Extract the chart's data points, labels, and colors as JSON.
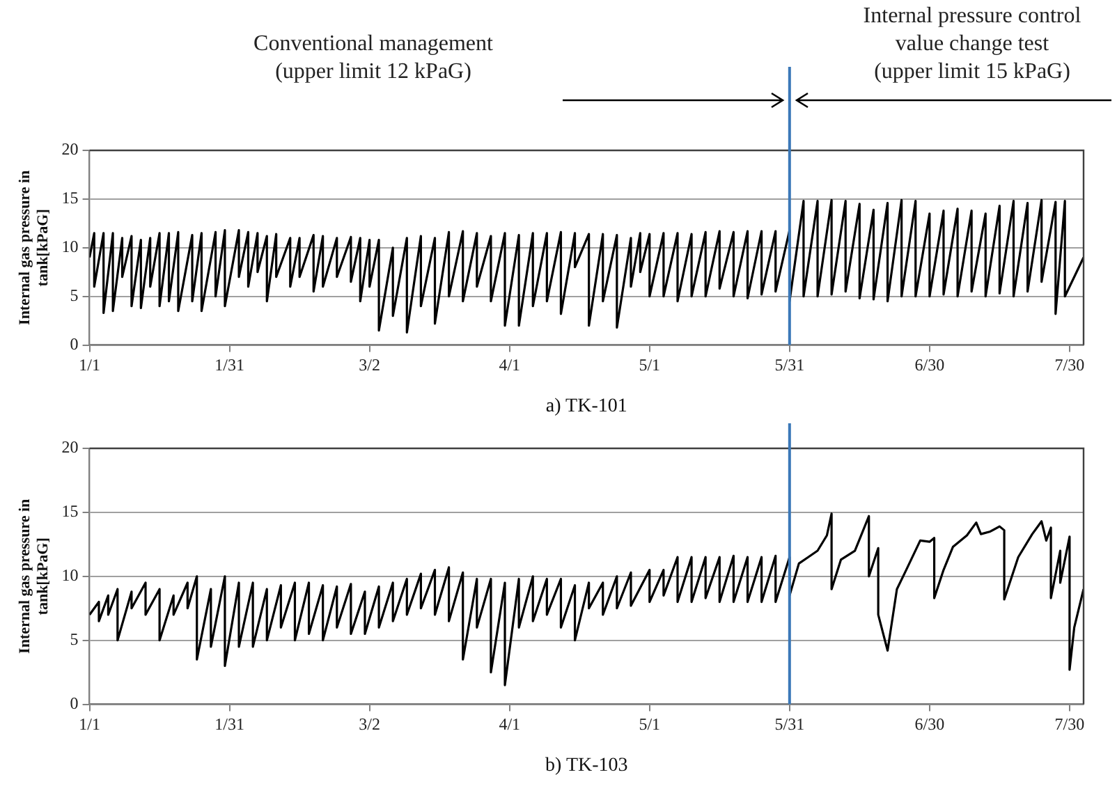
{
  "chart_data": [
    {
      "type": "line",
      "xlabel": "a) TK-101",
      "ylabel": "Internal gas pressure in\ntank[kPaG]",
      "xlim": [
        "--01-01",
        "--08-02"
      ],
      "xticks": [
        {
          "value": "--01-01",
          "label": "1/1"
        },
        {
          "value": "--01-31",
          "label": "1/31"
        },
        {
          "value": "--03-02",
          "label": "3/2"
        },
        {
          "value": "--04-01",
          "label": "4/1"
        },
        {
          "value": "--05-01",
          "label": "5/1"
        },
        {
          "value": "--05-31",
          "label": "5/31"
        },
        {
          "value": "--06-30",
          "label": "6/30"
        },
        {
          "value": "--07-30",
          "label": "7/30"
        }
      ],
      "ylim": [
        0,
        20
      ],
      "yticks": [
        0,
        5,
        10,
        15,
        20
      ],
      "grid": "y",
      "legend": false,
      "marker": "none",
      "line_style": "solid",
      "annotations": [
        "Conventional management\n(upper limit 12 kPaG)",
        "Internal pressure control\nvalue change test\n(upper limit 15 kPaG)"
      ],
      "ref_lines": [
        {
          "axis": "x",
          "value": "--05-31",
          "color": "#3b78b8"
        }
      ],
      "series": [
        {
          "color": "#000000",
          "x": [
            "--01-01",
            "--01-02",
            "--01-02",
            "--01-04",
            "--01-04",
            "--01-06",
            "--01-06",
            "--01-08",
            "--01-08",
            "--01-10",
            "--01-10",
            "--01-12",
            "--01-12",
            "--01-14",
            "--01-14",
            "--01-16",
            "--01-16",
            "--01-18",
            "--01-18",
            "--01-20",
            "--01-20",
            "--01-23",
            "--01-23",
            "--01-25",
            "--01-25",
            "--01-28",
            "--01-28",
            "--01-30",
            "--01-30",
            "--02-02",
            "--02-02",
            "--02-04",
            "--02-04",
            "--02-06",
            "--02-06",
            "--02-08",
            "--02-08",
            "--02-10",
            "--02-10",
            "--02-13",
            "--02-13",
            "--02-15",
            "--02-15",
            "--02-18",
            "--02-18",
            "--02-20",
            "--02-20",
            "--02-23",
            "--02-23",
            "--02-26",
            "--02-26",
            "--02-28",
            "--02-28",
            "--03-02",
            "--03-02",
            "--03-04",
            "--03-04",
            "--03-07",
            "--03-07",
            "--03-10",
            "--03-10",
            "--03-13",
            "--03-13",
            "--03-16",
            "--03-16",
            "--03-19",
            "--03-19",
            "--03-22",
            "--03-22",
            "--03-25",
            "--03-25",
            "--03-28",
            "--03-28",
            "--03-31",
            "--03-31",
            "--04-03",
            "--04-03",
            "--04-06",
            "--04-06",
            "--04-09",
            "--04-09",
            "--04-12",
            "--04-12",
            "--04-15",
            "--04-15",
            "--04-18",
            "--04-18",
            "--04-21",
            "--04-21",
            "--04-24",
            "--04-24",
            "--04-27",
            "--04-27",
            "--04-29",
            "--04-29",
            "--05-01",
            "--05-01",
            "--05-04",
            "--05-04",
            "--05-07",
            "--05-07",
            "--05-10",
            "--05-10",
            "--05-13",
            "--05-13",
            "--05-16",
            "--05-16",
            "--05-19",
            "--05-19",
            "--05-22",
            "--05-22",
            "--05-25",
            "--05-25",
            "--05-28",
            "--05-28",
            "--05-31",
            "--05-31",
            "--06-03",
            "--06-03",
            "--06-06",
            "--06-06",
            "--06-09",
            "--06-09",
            "--06-12",
            "--06-12",
            "--06-15",
            "--06-15",
            "--06-18",
            "--06-18",
            "--06-21",
            "--06-21",
            "--06-24",
            "--06-24",
            "--06-27",
            "--06-27",
            "--06-30",
            "--06-30",
            "--07-03",
            "--07-03",
            "--07-06",
            "--07-06",
            "--07-09",
            "--07-09",
            "--07-12",
            "--07-12",
            "--07-15",
            "--07-15",
            "--07-18",
            "--07-18",
            "--07-21",
            "--07-21",
            "--07-24",
            "--07-24",
            "--07-27",
            "--07-27",
            "--07-29",
            "--07-29",
            "--08-02"
          ],
          "values": [
            9,
            11.5,
            6,
            11.5,
            3.3,
            11.5,
            3.5,
            11,
            7,
            11.2,
            4,
            10.8,
            3.8,
            11,
            6,
            11.5,
            4,
            11.5,
            4.5,
            11.6,
            3.5,
            11.3,
            4.5,
            11.5,
            3.5,
            11.6,
            5,
            11.8,
            4,
            11.8,
            7,
            11.6,
            6,
            11.5,
            7.5,
            11.2,
            4.5,
            11.4,
            7,
            11,
            6,
            11,
            7,
            11.3,
            5.5,
            11.2,
            6,
            11,
            7,
            11.1,
            6.5,
            11,
            4.5,
            10.8,
            6,
            10.8,
            1.5,
            10,
            3,
            11,
            1.3,
            11.2,
            4,
            11,
            2.2,
            11.6,
            5,
            11.7,
            4.5,
            11.5,
            6,
            11.2,
            4.5,
            11.5,
            2,
            11.3,
            2,
            11.5,
            4,
            11.5,
            4.5,
            11.6,
            3.2,
            11.5,
            8,
            11.4,
            2,
            11.4,
            4.5,
            11.3,
            1.8,
            11,
            6,
            11.5,
            7.5,
            11.4,
            5,
            11.5,
            5,
            11.5,
            4.5,
            11.4,
            5,
            11.6,
            5,
            11.7,
            5.8,
            11.6,
            5,
            11.7,
            4.8,
            11.7,
            5.2,
            11.7,
            5.5,
            11.8,
            4.5,
            14.8,
            5,
            14.8,
            5,
            14.9,
            5.2,
            14.8,
            5.5,
            14.5,
            4.8,
            13.9,
            4.7,
            14.6,
            4.5,
            14.9,
            5,
            14.8,
            5,
            13.5,
            5,
            13.8,
            5.2,
            14,
            5,
            13.8,
            5.5,
            13.5,
            5,
            14.3,
            5.3,
            14.8,
            5,
            14.6,
            5.5,
            14.9,
            6.5,
            14.7,
            3.2,
            14.8,
            5,
            9
          ]
        }
      ]
    },
    {
      "type": "line",
      "xlabel": "b) TK-103",
      "ylabel": "Internal gas pressure in\ntank[kPaG]",
      "xlim": [
        "--01-01",
        "--08-02"
      ],
      "xticks": [
        {
          "value": "--01-01",
          "label": "1/1"
        },
        {
          "value": "--01-31",
          "label": "1/31"
        },
        {
          "value": "--03-02",
          "label": "3/2"
        },
        {
          "value": "--04-01",
          "label": "4/1"
        },
        {
          "value": "--05-01",
          "label": "5/1"
        },
        {
          "value": "--05-31",
          "label": "5/31"
        },
        {
          "value": "--06-30",
          "label": "6/30"
        },
        {
          "value": "--07-30",
          "label": "7/30"
        }
      ],
      "ylim": [
        0,
        20
      ],
      "yticks": [
        0,
        5,
        10,
        15,
        20
      ],
      "grid": "y",
      "legend": false,
      "marker": "none",
      "line_style": "solid",
      "ref_lines": [
        {
          "axis": "x",
          "value": "--05-31",
          "color": "#3b78b8"
        }
      ],
      "series": [
        {
          "color": "#000000",
          "x": [
            "--01-01",
            "--01-03",
            "--01-03",
            "--01-05",
            "--01-05",
            "--01-07",
            "--01-07",
            "--01-10",
            "--01-10",
            "--01-13",
            "--01-13",
            "--01-16",
            "--01-16",
            "--01-19",
            "--01-19",
            "--01-22",
            "--01-22",
            "--01-24",
            "--01-24",
            "--01-27",
            "--01-27",
            "--01-30",
            "--01-30",
            "--02-02",
            "--02-02",
            "--02-05",
            "--02-05",
            "--02-08",
            "--02-08",
            "--02-11",
            "--02-11",
            "--02-14",
            "--02-14",
            "--02-17",
            "--02-17",
            "--02-20",
            "--02-20",
            "--02-23",
            "--02-23",
            "--02-26",
            "--02-26",
            "--03-01",
            "--03-01",
            "--03-04",
            "--03-04",
            "--03-07",
            "--03-07",
            "--03-10",
            "--03-10",
            "--03-13",
            "--03-13",
            "--03-16",
            "--03-16",
            "--03-19",
            "--03-19",
            "--03-22",
            "--03-22",
            "--03-25",
            "--03-25",
            "--03-28",
            "--03-28",
            "--03-31",
            "--03-31",
            "--04-03",
            "--04-03",
            "--04-06",
            "--04-06",
            "--04-09",
            "--04-09",
            "--04-12",
            "--04-12",
            "--04-15",
            "--04-15",
            "--04-18",
            "--04-18",
            "--04-21",
            "--04-21",
            "--04-24",
            "--04-24",
            "--04-27",
            "--04-27",
            "--05-01",
            "--05-01",
            "--05-04",
            "--05-04",
            "--05-07",
            "--05-07",
            "--05-10",
            "--05-10",
            "--05-13",
            "--05-13",
            "--05-16",
            "--05-16",
            "--05-19",
            "--05-19",
            "--05-22",
            "--05-22",
            "--05-25",
            "--05-25",
            "--05-28",
            "--05-28",
            "--05-31",
            "--05-31",
            "--06-02",
            "--06-04",
            "--06-06",
            "--06-08",
            "--06-09",
            "--06-09",
            "--06-11",
            "--06-14",
            "--06-17",
            "--06-17",
            "--06-19",
            "--06-19",
            "--06-21",
            "--06-23",
            "--06-25",
            "--06-28",
            "--06-30",
            "--07-01",
            "--07-01",
            "--07-03",
            "--07-05",
            "--07-08",
            "--07-10",
            "--07-11",
            "--07-13",
            "--07-15",
            "--07-16",
            "--07-16",
            "--07-19",
            "--07-22",
            "--07-24",
            "--07-25",
            "--07-26",
            "--07-26",
            "--07-28",
            "--07-28",
            "--07-30",
            "--07-30",
            "--07-31",
            "--08-02"
          ],
          "values": [
            7,
            8,
            6.5,
            8.5,
            7,
            9,
            5,
            8.8,
            7.5,
            9.5,
            7,
            9,
            5,
            8.5,
            7,
            9.5,
            7.5,
            10,
            3.5,
            9,
            4.5,
            10,
            3,
            9.5,
            4.5,
            9.5,
            4.5,
            9,
            5,
            9.3,
            6,
            9.5,
            5,
            9.5,
            5.5,
            9.3,
            5,
            9.2,
            6,
            9.4,
            5.5,
            8.8,
            5.5,
            9.2,
            6,
            9.5,
            6.5,
            9.8,
            7,
            10.2,
            7.5,
            10.5,
            7,
            10.7,
            6.5,
            10.3,
            3.5,
            9.8,
            6,
            9.8,
            2.5,
            9.5,
            1.5,
            9.8,
            6,
            10,
            6.5,
            9.8,
            7,
            9.8,
            6,
            9.3,
            5,
            9.5,
            7.5,
            9.5,
            7,
            10,
            7.5,
            10.3,
            7.7,
            10.5,
            8,
            10.5,
            8.5,
            11.5,
            8,
            11.5,
            8,
            11.5,
            8.3,
            11.5,
            8,
            11.6,
            8,
            11.5,
            8,
            11.5,
            8,
            11.6,
            8,
            11.5,
            8.5,
            11,
            11.5,
            12,
            13.2,
            14.9,
            9,
            11.3,
            12,
            14.7,
            10,
            12.2,
            7,
            4.2,
            9,
            10.5,
            12.8,
            12.7,
            13,
            8.3,
            10.5,
            12.3,
            13.2,
            14.2,
            13.3,
            13.5,
            13.9,
            13.6,
            8.2,
            11.5,
            13.3,
            14.3,
            12.8,
            13.8,
            8.3,
            12,
            9.5,
            13.1,
            2.7,
            6,
            9
          ]
        }
      ]
    }
  ]
}
